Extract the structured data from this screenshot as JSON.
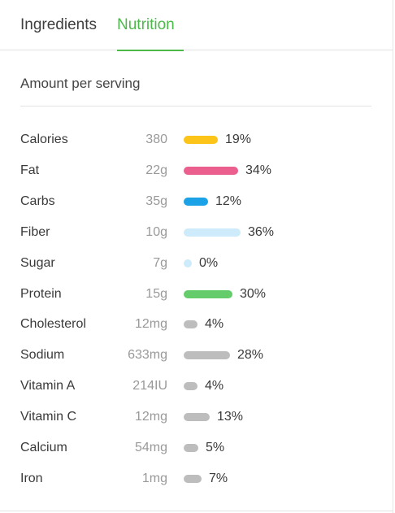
{
  "tabs": {
    "ingredients_label": "Ingredients",
    "nutrition_label": "Nutrition",
    "active": "Nutrition"
  },
  "section_title": "Amount per serving",
  "nutrients": [
    {
      "name": "Calories",
      "amount": "380",
      "percent_label": "19%",
      "percent": 19,
      "color": "#fcc418"
    },
    {
      "name": "Fat",
      "amount": "22g",
      "percent_label": "34%",
      "percent": 34,
      "color": "#ea5f8d"
    },
    {
      "name": "Carbs",
      "amount": "35g",
      "percent_label": "12%",
      "percent": 12,
      "color": "#1aa1e6"
    },
    {
      "name": "Fiber",
      "amount": "10g",
      "percent_label": "36%",
      "percent": 36,
      "color": "#cdebfa"
    },
    {
      "name": "Sugar",
      "amount": "7g",
      "percent_label": "0%",
      "percent": 0,
      "color": "#cdebfa"
    },
    {
      "name": "Protein",
      "amount": "15g",
      "percent_label": "30%",
      "percent": 30,
      "color": "#64cc6b"
    },
    {
      "name": "Cholesterol",
      "amount": "12mg",
      "percent_label": "4%",
      "percent": 4,
      "color": "#bdbdbd"
    },
    {
      "name": "Sodium",
      "amount": "633mg",
      "percent_label": "28%",
      "percent": 28,
      "color": "#bdbdbd"
    },
    {
      "name": "Vitamin A",
      "amount": "214IU",
      "percent_label": "4%",
      "percent": 4,
      "color": "#bdbdbd"
    },
    {
      "name": "Vitamin C",
      "amount": "12mg",
      "percent_label": "13%",
      "percent": 13,
      "color": "#bdbdbd"
    },
    {
      "name": "Calcium",
      "amount": "54mg",
      "percent_label": "5%",
      "percent": 5,
      "color": "#bdbdbd"
    },
    {
      "name": "Iron",
      "amount": "1mg",
      "percent_label": "7%",
      "percent": 7,
      "color": "#bdbdbd"
    }
  ]
}
